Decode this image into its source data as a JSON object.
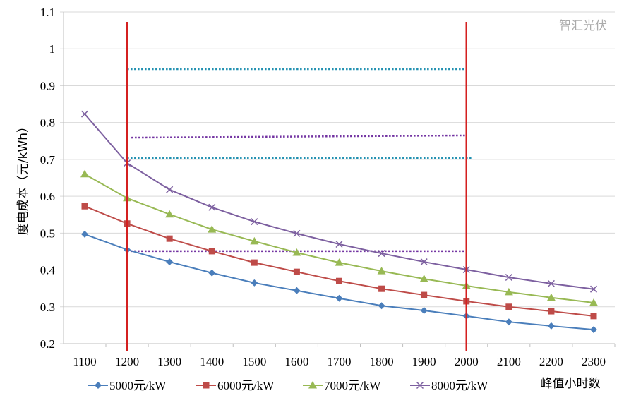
{
  "chart_data": {
    "type": "line",
    "title": "",
    "xlabel": "峰值小时数",
    "ylabel": "度电成本（元/kWh）",
    "x": [
      1100,
      1200,
      1300,
      1400,
      1500,
      1600,
      1700,
      1800,
      1900,
      2000,
      2100,
      2200,
      2300
    ],
    "x_tick_labels": [
      "1100",
      "1200",
      "1300",
      "1400",
      "1500",
      "1600",
      "1700",
      "1800",
      "1900",
      "2000",
      "2100",
      "2200",
      "2300"
    ],
    "ylim": [
      0.2,
      1.1
    ],
    "y_ticks": [
      0.2,
      0.3,
      0.4,
      0.5,
      0.6,
      0.7,
      0.8,
      0.9,
      1,
      1.1
    ],
    "y_tick_labels": [
      "0.2",
      "0.3",
      "0.4",
      "0.5",
      "0.6",
      "0.7",
      "0.8",
      "0.9",
      "1",
      "1.1"
    ],
    "grid": "horizontal",
    "legend_position": "bottom",
    "series": [
      {
        "name": "5000元/kW",
        "color": "#4a7ebb",
        "marker": "diamond",
        "values": [
          0.497,
          0.455,
          0.422,
          0.392,
          0.365,
          0.344,
          0.323,
          0.303,
          0.29,
          0.275,
          0.259,
          0.248,
          0.238
        ]
      },
      {
        "name": "6000元/kW",
        "color": "#be4b48",
        "marker": "square",
        "values": [
          0.573,
          0.526,
          0.485,
          0.451,
          0.42,
          0.395,
          0.37,
          0.349,
          0.332,
          0.315,
          0.3,
          0.288,
          0.275
        ]
      },
      {
        "name": "7000元/kW",
        "color": "#98b954",
        "marker": "triangle",
        "values": [
          0.66,
          0.595,
          0.551,
          0.51,
          0.478,
          0.447,
          0.42,
          0.397,
          0.376,
          0.357,
          0.34,
          0.325,
          0.311
        ]
      },
      {
        "name": "8000元/kW",
        "color": "#7d60a0",
        "marker": "x",
        "values": [
          0.823,
          0.69,
          0.618,
          0.57,
          0.531,
          0.499,
          0.47,
          0.445,
          0.422,
          0.401,
          0.38,
          0.363,
          0.348
        ]
      }
    ],
    "vertical_lines": [
      {
        "x": 1200,
        "color": "#d42020"
      },
      {
        "x": 2000,
        "color": "#d42020"
      }
    ],
    "reference_lines": [
      {
        "x_from": 1200,
        "x_to": 2000,
        "y_from": 0.945,
        "y_to": 0.945,
        "color": "#1f8fb0",
        "style": "dotted"
      },
      {
        "x_from": 1200,
        "x_to": 2015,
        "y_from": 0.704,
        "y_to": 0.704,
        "color": "#1f8fb0",
        "style": "dotted"
      },
      {
        "x_from": 1210,
        "x_to": 2000,
        "y_from": 0.759,
        "y_to": 0.765,
        "color": "#7030a0",
        "style": "dotted"
      },
      {
        "x_from": 1200,
        "x_to": 2000,
        "y_from": 0.451,
        "y_to": 0.451,
        "color": "#7030a0",
        "style": "dotted"
      }
    ]
  },
  "watermark": "智汇光伏"
}
